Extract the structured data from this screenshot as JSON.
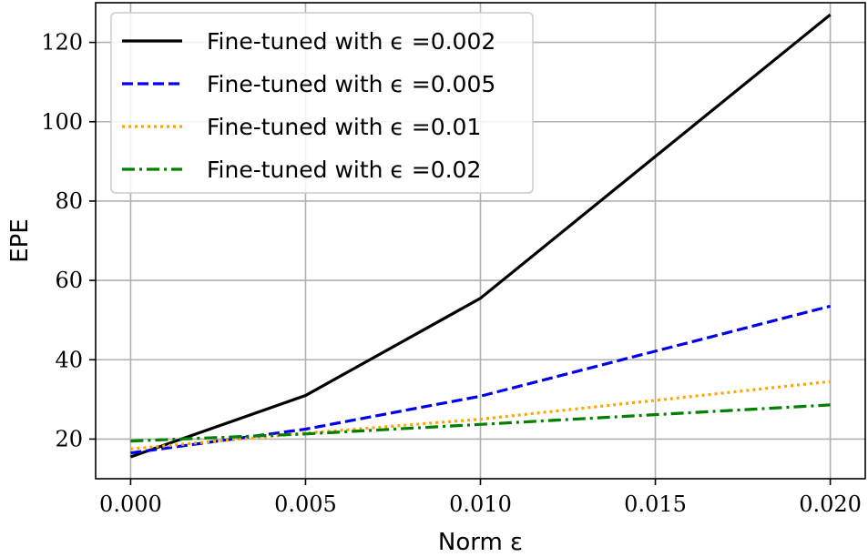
{
  "chart_data": {
    "type": "line",
    "title": "",
    "xlabel": "Norm ε",
    "ylabel": "EPE",
    "x": [
      0.0,
      0.005,
      0.01,
      0.02
    ],
    "xlim": [
      -0.001,
      0.021
    ],
    "ylim": [
      10,
      130
    ],
    "xticks": [
      0.0,
      0.005,
      0.01,
      0.015,
      0.02
    ],
    "xtick_labels": [
      "0.000",
      "0.005",
      "0.010",
      "0.015",
      "0.020"
    ],
    "yticks": [
      20,
      40,
      60,
      80,
      100,
      120
    ],
    "ytick_labels": [
      "20",
      "40",
      "60",
      "80",
      "100",
      "120"
    ],
    "grid": true,
    "legend_position": "top-left",
    "series": [
      {
        "name": "Fine-tuned with ϵ =0.002",
        "values": [
          15.5,
          31.0,
          55.5,
          127.0
        ],
        "color": "#000000",
        "dash": "solid"
      },
      {
        "name": "Fine-tuned with ϵ =0.005",
        "values": [
          16.5,
          22.5,
          30.8,
          53.5
        ],
        "color": "#0000ee",
        "dash": "dashed"
      },
      {
        "name": "Fine-tuned with ϵ =0.01",
        "values": [
          17.5,
          21.5,
          25.0,
          34.5
        ],
        "color": "#ffa500",
        "dash": "dotted"
      },
      {
        "name": "Fine-tuned with ϵ =0.02",
        "values": [
          19.5,
          21.3,
          23.7,
          28.6
        ],
        "color": "#008000",
        "dash": "dashdot"
      }
    ]
  }
}
